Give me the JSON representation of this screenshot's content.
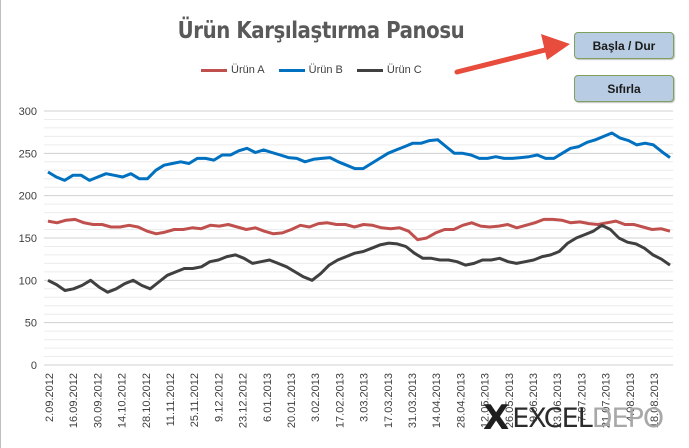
{
  "page": {
    "title": "Ürün Karşılaştırma Panosu"
  },
  "buttons": {
    "start_stop": "Başla / Dur",
    "reset": "Sıfırla"
  },
  "watermark": {
    "x_mark": "X",
    "excel": "EXCEL",
    "depo": "DEPO"
  },
  "colors": {
    "series_a": "#c0504d",
    "series_b": "#0070c0",
    "series_c": "#404040",
    "arrow": "#e74c3c",
    "button_fill": "#b8cce4",
    "gridline": "#d9d9d9"
  },
  "chart_data": {
    "type": "line",
    "title": "Ürün Karşılaştırma Panosu",
    "xlabel": "",
    "ylabel": "",
    "ylim": [
      0,
      300
    ],
    "y_ticks": [
      0,
      50,
      100,
      150,
      200,
      250,
      300
    ],
    "legend_position": "top",
    "grid": true,
    "x_tick_labels": [
      "2.09.2012",
      "16.09.2012",
      "30.09.2012",
      "14.10.2012",
      "28.10.2012",
      "11.11.2012",
      "25.11.2012",
      "9.12.2012",
      "23.12.2012",
      "6.01.2013",
      "20.01.2013",
      "3.02.2013",
      "17.02.2013",
      "3.03.2013",
      "17.03.2013",
      "31.03.2013",
      "14.04.2013",
      "28.04.2013",
      "12.05.2013",
      "26.05.2013",
      "9.06.2013",
      "23.06.2013",
      "7.07.2013",
      "21.07.2013",
      "4.08.2013",
      "18.08.2013"
    ],
    "x_start": "2.09.2012",
    "x_end": "26.08.2013",
    "series": [
      {
        "name": "Ürün A",
        "color": "#c0504d",
        "values": [
          170,
          168,
          171,
          172,
          168,
          166,
          166,
          163,
          163,
          165,
          163,
          158,
          155,
          157,
          160,
          160,
          162,
          161,
          165,
          164,
          166,
          163,
          160,
          162,
          158,
          155,
          156,
          160,
          165,
          163,
          167,
          168,
          166,
          166,
          163,
          166,
          165,
          162,
          161,
          162,
          158,
          148,
          150,
          156,
          160,
          160,
          165,
          168,
          164,
          163,
          164,
          166,
          162,
          165,
          168,
          172,
          172,
          171,
          168,
          169,
          167,
          166,
          168,
          170,
          166,
          166,
          163,
          160,
          161,
          158
        ]
      },
      {
        "name": "Ürün B",
        "color": "#0070c0",
        "values": [
          228,
          222,
          218,
          224,
          224,
          218,
          222,
          226,
          224,
          222,
          226,
          220,
          220,
          230,
          236,
          238,
          240,
          238,
          244,
          244,
          242,
          248,
          248,
          253,
          256,
          251,
          254,
          251,
          248,
          245,
          244,
          240,
          243,
          244,
          245,
          240,
          236,
          232,
          232,
          238,
          244,
          250,
          254,
          258,
          262,
          262,
          265,
          266,
          258,
          250,
          250,
          248,
          244,
          244,
          246,
          244,
          244,
          245,
          246,
          248,
          244,
          244,
          250,
          256,
          258,
          263,
          266,
          270,
          274,
          268,
          265,
          260,
          262,
          260,
          252,
          245
        ]
      },
      {
        "name": "Ürün C",
        "color": "#404040",
        "values": [
          100,
          95,
          88,
          90,
          94,
          100,
          92,
          86,
          90,
          96,
          100,
          94,
          90,
          98,
          106,
          110,
          114,
          114,
          116,
          122,
          124,
          128,
          130,
          126,
          120,
          122,
          124,
          120,
          116,
          110,
          104,
          100,
          108,
          118,
          124,
          128,
          132,
          134,
          138,
          142,
          144,
          143,
          140,
          132,
          126,
          126,
          124,
          124,
          122,
          118,
          120,
          124,
          124,
          126,
          122,
          120,
          122,
          124,
          128,
          130,
          134,
          144,
          150,
          154,
          158,
          165,
          160,
          150,
          145,
          143,
          138,
          130,
          125,
          118
        ]
      }
    ]
  }
}
